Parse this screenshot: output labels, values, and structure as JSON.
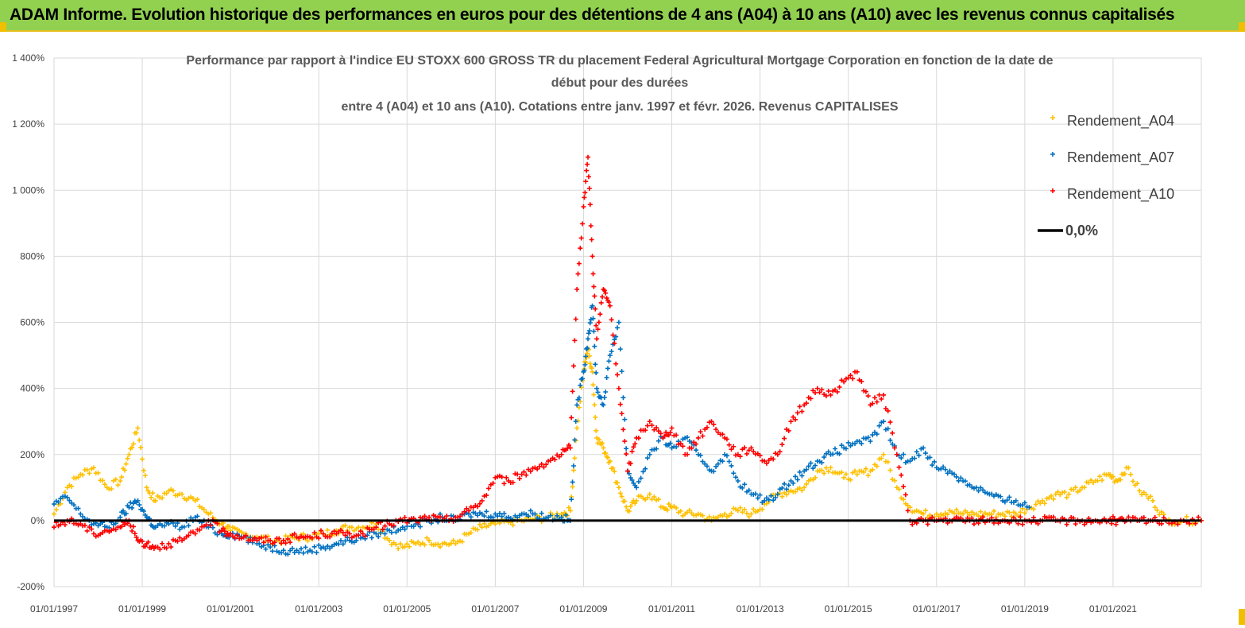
{
  "banner": {
    "title": "ADAM Informe. Evolution historique des performances en euros pour des détentions de 4 ans (A04) à 10 ans (A10) avec les revenus connus capitalisés",
    "background": "#92d050"
  },
  "chart_data": {
    "type": "scatter",
    "title_lines": [
      "Performance par rapport à l'indice EU STOXX 600 GROSS TR  du placement Federal Agricultural Mortgage Corporation en fonction de la date de",
      "début pour des durées",
      "entre 4 (A04) et 10 ans (A10). Cotations entre janv. 1997 et févr. 2026. Revenus CAPITALISES"
    ],
    "y_ticks": [
      {
        "value": 1400,
        "label": "1 400%"
      },
      {
        "value": 1200,
        "label": "1 200%"
      },
      {
        "value": 1000,
        "label": "1 000%"
      },
      {
        "value": 800,
        "label": "800%"
      },
      {
        "value": 600,
        "label": "600%"
      },
      {
        "value": 400,
        "label": "400%"
      },
      {
        "value": 200,
        "label": "200%"
      },
      {
        "value": 0,
        "label": "0%"
      },
      {
        "value": -200,
        "label": "-200%"
      }
    ],
    "ylim": [
      -200,
      1400
    ],
    "xlim": [
      1997.0,
      2023.0
    ],
    "x_ticks": [
      {
        "value": 1997,
        "label": "01/01/1997"
      },
      {
        "value": 1999,
        "label": "01/01/1999"
      },
      {
        "value": 2001,
        "label": "01/01/2001"
      },
      {
        "value": 2003,
        "label": "01/01/2003"
      },
      {
        "value": 2005,
        "label": "01/01/2005"
      },
      {
        "value": 2007,
        "label": "01/01/2007"
      },
      {
        "value": 2009,
        "label": "01/01/2009"
      },
      {
        "value": 2011,
        "label": "01/01/2011"
      },
      {
        "value": 2013,
        "label": "01/01/2013"
      },
      {
        "value": 2015,
        "label": "01/01/2015"
      },
      {
        "value": 2017,
        "label": "01/01/2017"
      },
      {
        "value": 2019,
        "label": "01/01/2019"
      },
      {
        "value": 2021,
        "label": "01/01/2021"
      }
    ],
    "series": [
      {
        "name": "Rendement_A04",
        "color": "#ffc000",
        "x": [
          1997.0,
          1997.3,
          1997.6,
          1997.9,
          1998.2,
          1998.5,
          1998.7,
          1998.9,
          1999.1,
          1999.3,
          1999.6,
          1999.9,
          2000.2,
          2000.5,
          2000.8,
          2001.0,
          2001.3,
          2001.6,
          2001.9,
          2002.2,
          2002.5,
          2002.8,
          2003.1,
          2003.4,
          2003.7,
          2004.0,
          2004.3,
          2004.6,
          2004.9,
          2005.2,
          2005.5,
          2005.8,
          2006.1,
          2006.4,
          2006.7,
          2007.0,
          2007.3,
          2007.6,
          2007.9,
          2008.2,
          2008.5,
          2008.7,
          2008.85,
          2009.0,
          2009.1,
          2009.2,
          2009.3,
          2009.45,
          2009.6,
          2009.8,
          2010.0,
          2010.2,
          2010.5,
          2010.8,
          2011.0,
          2011.3,
          2011.6,
          2011.9,
          2012.2,
          2012.5,
          2012.8,
          2013.1,
          2013.4,
          2013.7,
          2014.0,
          2014.3,
          2014.6,
          2014.9,
          2015.2,
          2015.5,
          2015.8,
          2016.1,
          2016.4,
          2016.7,
          2017.0,
          2017.3,
          2017.6,
          2017.9,
          2018.2,
          2018.5,
          2018.8,
          2019.1,
          2019.4,
          2019.7,
          2020.0,
          2020.3,
          2020.6,
          2020.9,
          2021.1,
          2021.3,
          2021.6,
          2021.9,
          2022.2,
          2022.6,
          2023.0
        ],
        "values": [
          20,
          100,
          140,
          160,
          100,
          120,
          200,
          280,
          100,
          60,
          90,
          80,
          60,
          20,
          -10,
          -30,
          -40,
          -50,
          -60,
          -60,
          -50,
          -50,
          -40,
          -30,
          -20,
          -20,
          -10,
          -60,
          -80,
          -70,
          -60,
          -70,
          -70,
          -40,
          -20,
          -10,
          -5,
          0,
          5,
          10,
          20,
          30,
          280,
          450,
          520,
          450,
          250,
          220,
          180,
          100,
          30,
          60,
          80,
          40,
          40,
          20,
          20,
          0,
          20,
          30,
          20,
          50,
          80,
          90,
          100,
          150,
          160,
          130,
          140,
          150,
          200,
          100,
          40,
          20,
          20,
          30,
          20,
          20,
          20,
          20,
          20,
          40,
          60,
          80,
          80,
          100,
          120,
          140,
          120,
          160,
          90,
          60,
          0,
          0,
          0
        ]
      },
      {
        "name": "Rendement_A07",
        "color": "#0070c0",
        "x": [
          1997.0,
          1997.3,
          1997.6,
          1997.9,
          1998.2,
          1998.5,
          1998.7,
          1998.9,
          1999.1,
          1999.3,
          1999.6,
          1999.9,
          2000.2,
          2000.5,
          2000.8,
          2001.0,
          2001.3,
          2001.6,
          2001.9,
          2002.2,
          2002.5,
          2002.8,
          2003.1,
          2003.4,
          2003.7,
          2004.0,
          2004.3,
          2004.6,
          2004.9,
          2005.2,
          2005.5,
          2005.8,
          2006.1,
          2006.4,
          2006.7,
          2007.0,
          2007.3,
          2007.6,
          2007.9,
          2008.2,
          2008.5,
          2008.7,
          2008.85,
          2009.0,
          2009.1,
          2009.2,
          2009.3,
          2009.45,
          2009.6,
          2009.8,
          2010.0,
          2010.2,
          2010.5,
          2010.8,
          2011.0,
          2011.3,
          2011.6,
          2011.9,
          2012.2,
          2012.5,
          2012.8,
          2013.1,
          2013.4,
          2013.7,
          2014.0,
          2014.3,
          2014.6,
          2014.9,
          2015.2,
          2015.5,
          2015.8,
          2016.1,
          2016.4,
          2016.7,
          2017.0,
          2017.3,
          2017.6,
          2017.9,
          2018.2,
          2018.5,
          2018.8,
          2019.1
        ],
        "values": [
          50,
          70,
          20,
          -10,
          -20,
          10,
          40,
          60,
          10,
          -20,
          -10,
          -20,
          10,
          -20,
          -40,
          -40,
          -50,
          -70,
          -80,
          -90,
          -90,
          -90,
          -80,
          -70,
          -60,
          -50,
          -40,
          -30,
          -20,
          -10,
          0,
          10,
          0,
          20,
          20,
          20,
          10,
          20,
          20,
          10,
          10,
          0,
          350,
          450,
          550,
          650,
          400,
          350,
          500,
          600,
          150,
          100,
          200,
          250,
          220,
          250,
          200,
          150,
          200,
          120,
          80,
          60,
          80,
          120,
          150,
          180,
          200,
          220,
          240,
          240,
          300,
          200,
          180,
          220,
          160,
          150,
          120,
          100,
          80,
          60,
          60,
          40
        ]
      },
      {
        "name": "Rendement_A10",
        "color": "#ff0000",
        "x": [
          1997.0,
          1997.3,
          1997.6,
          1997.9,
          1998.2,
          1998.5,
          1998.7,
          1998.9,
          1999.1,
          1999.3,
          1999.6,
          1999.9,
          2000.2,
          2000.5,
          2000.8,
          2001.0,
          2001.3,
          2001.6,
          2001.9,
          2002.2,
          2002.5,
          2002.8,
          2003.1,
          2003.4,
          2003.7,
          2004.0,
          2004.3,
          2004.6,
          2004.9,
          2005.2,
          2005.5,
          2005.8,
          2006.1,
          2006.4,
          2006.7,
          2007.0,
          2007.3,
          2007.6,
          2007.9,
          2008.2,
          2008.5,
          2008.7,
          2008.85,
          2009.0,
          2009.1,
          2009.2,
          2009.3,
          2009.45,
          2009.6,
          2009.8,
          2010.0,
          2010.2,
          2010.5,
          2010.8,
          2011.0,
          2011.3,
          2011.6,
          2011.9,
          2012.2,
          2012.5,
          2012.8,
          2013.1,
          2013.4,
          2013.7,
          2014.0,
          2014.3,
          2014.6,
          2014.9,
          2015.2,
          2015.5,
          2015.8,
          2016.1,
          2016.4,
          2016.7,
          2017.0,
          2017.3,
          2017.6,
          2017.9,
          2018.2,
          2018.5,
          2018.8,
          2019.1,
          2019.4,
          2019.7,
          2020.0,
          2020.3,
          2020.6,
          2020.9,
          2021.1,
          2021.3,
          2021.6,
          2021.9,
          2022.2,
          2022.6,
          2023.0
        ],
        "values": [
          -20,
          0,
          -10,
          -40,
          -30,
          -20,
          0,
          -60,
          -70,
          -80,
          -70,
          -60,
          -40,
          0,
          -30,
          -40,
          -50,
          -60,
          -60,
          -60,
          -50,
          -50,
          -40,
          -40,
          -40,
          -40,
          -20,
          -10,
          0,
          0,
          10,
          0,
          10,
          30,
          60,
          130,
          120,
          140,
          160,
          180,
          200,
          220,
          700,
          950,
          1100,
          800,
          550,
          700,
          650,
          400,
          150,
          250,
          300,
          250,
          280,
          200,
          250,
          300,
          250,
          200,
          220,
          180,
          200,
          300,
          350,
          400,
          380,
          420,
          450,
          350,
          380,
          200,
          0,
          0,
          0,
          0,
          0,
          0,
          0,
          0,
          0,
          0,
          0,
          0,
          0,
          0,
          0,
          0,
          0,
          0,
          0,
          0,
          0,
          0,
          0
        ]
      },
      {
        "name": "0,0%",
        "color": "#000000",
        "type": "line",
        "x": [
          1997,
          2023
        ],
        "values": [
          0,
          0
        ]
      }
    ],
    "legend": [
      "Rendement_A04",
      "Rendement_A07",
      "Rendement_A10",
      "0,0%"
    ],
    "legend_position": "top-right",
    "grid": true
  }
}
